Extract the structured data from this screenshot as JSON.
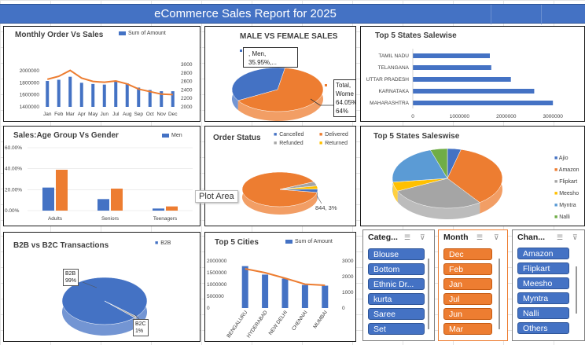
{
  "report_title": "eCommerce Sales Report for 2025",
  "monthly": {
    "title": "Monthly Order Vs Sales",
    "legend": "Sum of Amount",
    "chart_data": {
      "type": "bar",
      "categories": [
        "Jan",
        "Feb",
        "Mar",
        "Apr",
        "May",
        "Jun",
        "Jul",
        "Aug",
        "Sep",
        "Oct",
        "Nov",
        "Dec"
      ],
      "series": [
        {
          "name": "Sum of Amount",
          "values": [
            1830000,
            1850000,
            1900000,
            1800000,
            1780000,
            1770000,
            1830000,
            1790000,
            1720000,
            1680000,
            1660000,
            1660000
          ]
        },
        {
          "name": "",
          "values": [
            2650,
            2720,
            2860,
            2680,
            2600,
            2580,
            2610,
            2540,
            2420,
            2360,
            2300,
            2290
          ]
        }
      ],
      "left_ticks": [
        "2000000",
        "1800000",
        "1600000",
        "1400000"
      ],
      "right_ticks": [
        "3000",
        "2800",
        "2600",
        "2400",
        "2200",
        "2000"
      ]
    }
  },
  "gender": {
    "title": "MALE VS FEMALE SALES",
    "men_label": ", Men,",
    "men_pct": "35.95%,...",
    "women_labels": [
      "Total,",
      "Wome",
      "64.05%",
      "64%"
    ],
    "chart_data": {
      "type": "pie",
      "categories": [
        "Men",
        "Women"
      ],
      "values": [
        35.95,
        64.05
      ]
    }
  },
  "top_states_bar": {
    "title": "Top 5 States Salewise",
    "chart_data": {
      "type": "bar",
      "categories": [
        "TAMIL NADU",
        "TELANGANA",
        "UTTAR PRADESH",
        "KARNATAKA",
        "MAHARASHTRA"
      ],
      "values": [
        1650000,
        1680000,
        2100000,
        2600000,
        3000000
      ],
      "x_ticks": [
        "0",
        "1000000",
        "2000000",
        "3000000"
      ]
    }
  },
  "age": {
    "title": "Sales:Age  Group Vs Gender",
    "legend": "Men",
    "chart_data": {
      "type": "bar",
      "categories": [
        "Adults",
        "Seniors",
        "Teenagers"
      ],
      "series": [
        {
          "name": "Men",
          "values": [
            22,
            11,
            2
          ]
        },
        {
          "name": "",
          "values": [
            39,
            21,
            4
          ]
        }
      ],
      "y_ticks": [
        "60.00%",
        "40.00%",
        "20.00%",
        "0.00%"
      ]
    }
  },
  "order_status": {
    "title": "Order Status",
    "legend": [
      "Cancelled",
      "Delivered",
      "Refunded",
      "Returned"
    ],
    "data_label": "844, 3%",
    "chart_data": {
      "type": "pie",
      "categories": [
        "Cancelled",
        "Delivered",
        "Refunded",
        "Returned"
      ],
      "values": [
        3,
        90,
        4,
        3
      ]
    }
  },
  "states_pie": {
    "title": "Top 5 States Saleswise",
    "legend": [
      "Ajio",
      "Amazon",
      "Flipkart",
      "Meesho",
      "Myntra",
      "Nalli"
    ],
    "chart_data": {
      "type": "pie",
      "categories": [
        "Ajio",
        "Amazon",
        "Flipkart",
        "Meesho",
        "Myntra",
        "Nalli"
      ],
      "values": [
        4,
        36,
        28,
        5,
        22,
        5
      ]
    }
  },
  "b2b": {
    "title": "B2B vs B2C Transactions",
    "legend": "B2B",
    "b2b_label": [
      "B2B",
      "99%"
    ],
    "b2c_label": [
      "B2C",
      "1%"
    ],
    "chart_data": {
      "type": "pie",
      "categories": [
        "B2B",
        "B2C"
      ],
      "values": [
        99,
        1
      ]
    }
  },
  "cities": {
    "title": "Top 5 Cities",
    "legend": "Sum of Amount",
    "chart_data": {
      "type": "bar",
      "categories": [
        "BENGALURU",
        "HYDERABAD",
        "NEW DELHI",
        "CHENNAI",
        "MUMBAI"
      ],
      "series": [
        {
          "name": "Sum of Amount",
          "values": [
            1780000,
            1420000,
            1250000,
            980000,
            950000
          ]
        },
        {
          "name": "",
          "values": [
            2500,
            2250,
            1900,
            1520,
            1450
          ]
        }
      ],
      "left_ticks": [
        "2000000",
        "1500000",
        "1000000",
        "500000",
        "0"
      ],
      "right_ticks": [
        "3000",
        "2000",
        "1000",
        "0"
      ]
    }
  },
  "tooltip": "Plot Area",
  "slicers": {
    "category": {
      "header": "Categ...",
      "items": [
        "Blouse",
        "Bottom",
        "Ethnic Dr...",
        "kurta",
        "Saree",
        "Set"
      ]
    },
    "month": {
      "header": "Month",
      "items": [
        "Dec",
        "Feb",
        "Jan",
        "Jul",
        "Jun",
        "Mar"
      ]
    },
    "channel": {
      "header": "Chan...",
      "items": [
        "Amazon",
        "Flipkart",
        "Meesho",
        "Myntra",
        "Nalli",
        "Others"
      ]
    }
  }
}
